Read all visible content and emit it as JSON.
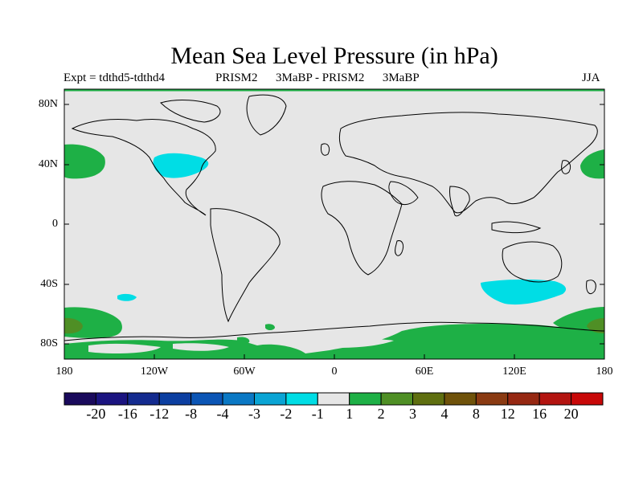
{
  "title": "Mean Sea Level Pressure (in hPa)",
  "experiment": "Expt = tdthd5-tdthd4",
  "comparison": "PRISM2      3MaBP - PRISM2      3MaBP",
  "season": "JJA",
  "lat_ticks": [
    "80N",
    "40N",
    "0",
    "40S",
    "80S"
  ],
  "lon_ticks": [
    "180",
    "120W",
    "60W",
    "0",
    "60E",
    "120E",
    "180"
  ],
  "colorbar": {
    "labels": [
      "-20",
      "-16",
      "-12",
      "-8",
      "-4",
      "-3",
      "-2",
      "-1",
      "1",
      "2",
      "3",
      "4",
      "8",
      "12",
      "16",
      "20"
    ],
    "colors": [
      "#1a0a5c",
      "#1b1480",
      "#142b8f",
      "#0c3fa1",
      "#0b55b5",
      "#0a78c4",
      "#0aa4d4",
      "#00dde5",
      "#e6e6e6",
      "#1eb046",
      "#4f8f25",
      "#5f6f10",
      "#6f520a",
      "#8a3a12",
      "#962812",
      "#b31410",
      "#c80808"
    ]
  },
  "colors": {
    "ocean_background": "#e6e6e6",
    "coast": "#000000",
    "positive_anomaly": "#1eb046",
    "strong_positive_anomaly": "#4f8f25",
    "negative_anomaly": "#00dde5"
  }
}
